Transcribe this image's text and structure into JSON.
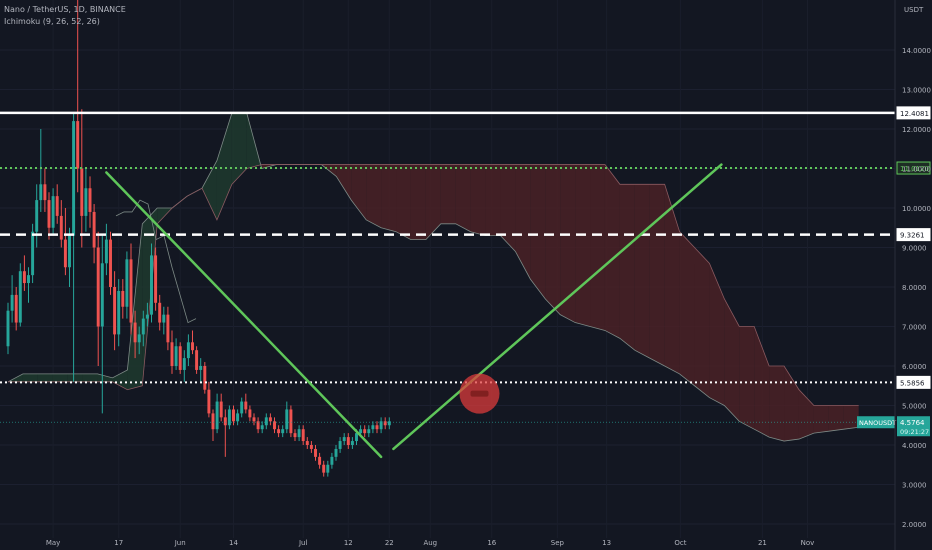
{
  "header": {
    "symbol_line": "Nano / TetherUS, 1D, BINANCE",
    "indicator_line": "Ichimoku (9, 26, 52, 26)"
  },
  "currency_label": "USDT",
  "colors": {
    "background": "#131722",
    "up": "#26a69a",
    "down": "#ef5350",
    "trendline": "#5fc65a",
    "cloud_bear": "#4a2126",
    "cloud_bull": "#1f3a2e",
    "axis_text": "#b2b5be",
    "price_tag": "#26a69a",
    "marker": "#e23b3b"
  },
  "chart_data": {
    "type": "candlestick",
    "ylim": [
      2,
      14.6
    ],
    "y_ticks": [
      "2.0000",
      "3.0000",
      "4.0000",
      "5.0000",
      "6.0000",
      "7.0000",
      "8.0000",
      "9.0000",
      "10.0000",
      "11.0000",
      "12.0000",
      "13.0000",
      "14.0000"
    ],
    "x_ticks": [
      "May",
      "17",
      "Jun",
      "14",
      "Jul",
      "12",
      "22",
      "Aug",
      "16",
      "Sep",
      "13",
      "Oct",
      "21",
      "Nov"
    ],
    "levels": [
      {
        "value": 12.4081,
        "label": "12.4081",
        "style": "solid",
        "color": "#ffffff"
      },
      {
        "value": 11.012,
        "label": "11.0120",
        "style": "dotted",
        "color": "#5fc65a"
      },
      {
        "value": 9.3261,
        "label": "9.3261",
        "style": "dashed",
        "color": "#ffffff"
      },
      {
        "value": 5.5856,
        "label": "5.5856",
        "style": "dotted",
        "color": "#ffffff"
      }
    ],
    "last_price": {
      "symbol": "NANOUSDT",
      "value": "4.5764",
      "countdown": "09:21:27"
    },
    "candle_start": "Apr 20",
    "candles": [
      [
        6.5,
        7.6,
        6.3,
        7.4
      ],
      [
        7.4,
        8.3,
        7.1,
        7.8
      ],
      [
        7.8,
        8.0,
        6.9,
        7.1
      ],
      [
        7.1,
        8.6,
        7.0,
        8.4
      ],
      [
        8.4,
        8.8,
        7.9,
        8.1
      ],
      [
        8.1,
        8.5,
        7.6,
        8.3
      ],
      [
        8.3,
        9.6,
        8.1,
        9.4
      ],
      [
        9.4,
        10.6,
        9.0,
        10.2
      ],
      [
        10.2,
        12.0,
        9.9,
        10.6
      ],
      [
        10.6,
        11.0,
        9.9,
        10.2
      ],
      [
        10.2,
        10.4,
        9.2,
        9.5
      ],
      [
        9.5,
        10.5,
        9.3,
        10.3
      ],
      [
        10.3,
        10.6,
        9.6,
        9.8
      ],
      [
        9.8,
        10.2,
        9.0,
        9.2
      ],
      [
        9.2,
        10.0,
        8.3,
        8.5
      ],
      [
        8.5,
        9.5,
        8.0,
        9.3
      ],
      [
        9.3,
        12.4,
        5.6,
        12.2
      ],
      [
        12.2,
        15.6,
        10.4,
        11.0
      ],
      [
        11.0,
        12.5,
        9.0,
        9.8
      ],
      [
        9.8,
        11.0,
        9.4,
        10.5
      ],
      [
        10.5,
        10.8,
        9.5,
        9.9
      ],
      [
        9.9,
        10.1,
        8.6,
        9.0
      ],
      [
        9.0,
        9.4,
        6.0,
        7.0
      ],
      [
        7.0,
        9.3,
        4.8,
        8.6
      ],
      [
        8.6,
        9.6,
        8.3,
        9.2
      ],
      [
        9.2,
        9.4,
        7.8,
        8.0
      ],
      [
        8.0,
        8.4,
        6.4,
        6.8
      ],
      [
        6.8,
        8.2,
        6.5,
        7.9
      ],
      [
        7.9,
        8.2,
        7.2,
        7.5
      ],
      [
        7.5,
        8.9,
        7.2,
        8.7
      ],
      [
        8.7,
        9.1,
        6.8,
        7.1
      ],
      [
        7.1,
        7.4,
        6.2,
        6.6
      ],
      [
        6.6,
        7.0,
        6.3,
        6.8
      ],
      [
        6.8,
        7.4,
        6.5,
        7.2
      ],
      [
        7.2,
        7.6,
        7.0,
        7.3
      ],
      [
        7.3,
        9.1,
        7.1,
        8.8
      ],
      [
        8.8,
        9.0,
        7.4,
        7.6
      ],
      [
        7.6,
        7.8,
        6.9,
        7.1
      ],
      [
        7.1,
        7.5,
        6.8,
        7.3
      ],
      [
        7.3,
        7.5,
        6.4,
        6.6
      ],
      [
        6.6,
        6.9,
        5.8,
        6.0
      ],
      [
        6.0,
        6.7,
        5.9,
        6.5
      ],
      [
        6.5,
        6.6,
        5.8,
        5.9
      ],
      [
        5.9,
        6.4,
        5.6,
        6.2
      ],
      [
        6.2,
        6.8,
        6.0,
        6.6
      ],
      [
        6.6,
        6.9,
        6.3,
        6.4
      ],
      [
        6.4,
        6.5,
        5.8,
        5.9
      ],
      [
        5.9,
        6.2,
        5.6,
        6.0
      ],
      [
        6.0,
        6.1,
        5.3,
        5.4
      ],
      [
        5.4,
        5.6,
        4.7,
        4.8
      ],
      [
        4.8,
        4.9,
        4.1,
        4.4
      ],
      [
        4.4,
        5.3,
        4.3,
        5.1
      ],
      [
        5.1,
        5.3,
        4.6,
        4.7
      ],
      [
        4.7,
        4.9,
        3.7,
        4.5
      ],
      [
        4.5,
        5.0,
        4.4,
        4.9
      ],
      [
        4.9,
        5.0,
        4.5,
        4.6
      ],
      [
        4.6,
        4.9,
        4.5,
        4.8
      ],
      [
        4.8,
        5.2,
        4.7,
        5.1
      ],
      [
        5.1,
        5.3,
        4.8,
        4.9
      ],
      [
        4.9,
        5.0,
        4.6,
        4.7
      ],
      [
        4.7,
        4.8,
        4.5,
        4.6
      ],
      [
        4.6,
        4.7,
        4.3,
        4.4
      ],
      [
        4.4,
        4.6,
        4.3,
        4.5
      ],
      [
        4.5,
        4.8,
        4.4,
        4.7
      ],
      [
        4.7,
        4.8,
        4.5,
        4.6
      ],
      [
        4.6,
        4.7,
        4.3,
        4.4
      ],
      [
        4.4,
        4.5,
        4.2,
        4.3
      ],
      [
        4.3,
        4.5,
        4.2,
        4.4
      ],
      [
        4.4,
        5.1,
        4.3,
        4.9
      ],
      [
        4.9,
        5.0,
        4.2,
        4.3
      ],
      [
        4.3,
        4.4,
        4.1,
        4.2
      ],
      [
        4.2,
        4.5,
        4.1,
        4.4
      ],
      [
        4.4,
        4.5,
        4.0,
        4.1
      ],
      [
        4.1,
        4.2,
        3.9,
        4.0
      ],
      [
        4.0,
        4.1,
        3.8,
        3.9
      ],
      [
        3.9,
        4.0,
        3.6,
        3.7
      ],
      [
        3.7,
        3.8,
        3.4,
        3.5
      ],
      [
        3.5,
        3.6,
        3.2,
        3.3
      ],
      [
        3.3,
        3.6,
        3.2,
        3.5
      ],
      [
        3.5,
        3.8,
        3.4,
        3.7
      ],
      [
        3.7,
        4.0,
        3.6,
        3.9
      ],
      [
        3.9,
        4.2,
        3.8,
        4.1
      ],
      [
        4.1,
        4.3,
        4.0,
        4.2
      ],
      [
        4.2,
        4.3,
        3.9,
        4.0
      ],
      [
        4.0,
        4.2,
        3.9,
        4.1
      ],
      [
        4.1,
        4.4,
        4.0,
        4.3
      ],
      [
        4.3,
        4.5,
        4.2,
        4.4
      ],
      [
        4.4,
        4.5,
        4.2,
        4.3
      ],
      [
        4.3,
        4.5,
        4.2,
        4.4
      ],
      [
        4.4,
        4.6,
        4.3,
        4.5
      ],
      [
        4.5,
        4.6,
        4.3,
        4.4
      ],
      [
        4.4,
        4.7,
        4.3,
        4.6
      ],
      [
        4.6,
        4.7,
        4.4,
        4.5
      ],
      [
        4.5,
        4.7,
        4.4,
        4.6
      ]
    ],
    "ichimoku_span_a": [
      [
        5.6,
        5.6
      ],
      [
        5.8,
        5.6
      ],
      [
        5.8,
        5.6
      ],
      [
        5.8,
        5.6
      ],
      [
        5.8,
        5.6
      ],
      [
        5.8,
        5.6
      ],
      [
        5.8,
        5.6
      ],
      [
        5.7,
        5.6
      ],
      [
        5.9,
        5.4
      ],
      [
        9.6,
        5.5
      ],
      [
        10.0,
        9.6
      ],
      [
        10.0,
        10.0
      ],
      [
        10.3,
        10.3
      ],
      [
        10.5,
        10.5
      ],
      [
        11.2,
        9.7
      ],
      [
        12.4,
        10.6
      ],
      [
        12.4,
        11.0
      ],
      [
        11.0,
        11.1
      ],
      [
        11.1,
        11.1
      ],
      [
        11.1,
        11.1
      ],
      [
        11.1,
        11.1
      ],
      [
        11.1,
        11.1
      ],
      [
        10.8,
        11.1
      ],
      [
        10.2,
        11.1
      ],
      [
        9.7,
        11.1
      ],
      [
        9.5,
        11.1
      ],
      [
        9.4,
        11.1
      ],
      [
        9.2,
        11.1
      ],
      [
        9.2,
        11.1
      ],
      [
        9.6,
        11.1
      ],
      [
        9.6,
        11.1
      ],
      [
        9.4,
        11.1
      ],
      [
        9.3,
        11.1
      ],
      [
        9.3,
        11.1
      ],
      [
        8.9,
        11.1
      ],
      [
        8.2,
        11.1
      ],
      [
        7.7,
        11.1
      ],
      [
        7.3,
        11.1
      ],
      [
        7.1,
        11.1
      ],
      [
        7.0,
        11.1
      ],
      [
        6.9,
        11.1
      ],
      [
        6.7,
        10.6
      ],
      [
        6.4,
        10.6
      ],
      [
        6.2,
        10.6
      ],
      [
        6.0,
        10.6
      ],
      [
        5.8,
        9.4
      ],
      [
        5.5,
        9.0
      ],
      [
        5.2,
        8.6
      ],
      [
        5.0,
        7.7
      ],
      [
        4.6,
        7.0
      ],
      [
        4.4,
        7.0
      ],
      [
        4.2,
        6.0
      ],
      [
        4.1,
        6.0
      ],
      [
        4.15,
        5.4
      ],
      [
        4.3,
        5.0
      ],
      [
        4.35,
        5.0
      ],
      [
        4.4,
        5.0
      ],
      [
        4.45,
        5.0
      ]
    ],
    "tenkan": [
      [
        9.8,
        9.9
      ],
      [
        9.9,
        9.9
      ],
      [
        9.9,
        9.9
      ],
      [
        10.2,
        10.0
      ],
      [
        10.1,
        9.4
      ],
      [
        9.2,
        9.3
      ],
      [
        9.3,
        9.2
      ],
      [
        8.5,
        7.5
      ],
      [
        7.8,
        7.3
      ],
      [
        7.1,
        7.2
      ],
      [
        7.2,
        6.8
      ]
    ],
    "trendlines": [
      {
        "from": [
          "May 14",
          10.9
        ],
        "to": [
          "Jul 20",
          3.7
        ]
      },
      {
        "from": [
          "Jul 23",
          3.9
        ],
        "to": [
          "Oct 11",
          11.1
        ]
      }
    ],
    "marker": {
      "x": "Aug 13",
      "y": 5.3,
      "shape": "no-entry"
    }
  }
}
